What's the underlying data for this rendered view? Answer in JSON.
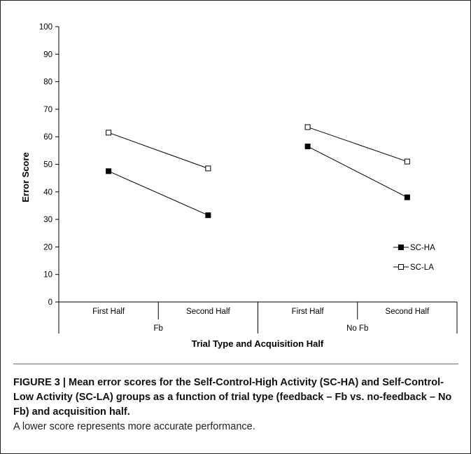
{
  "chart_data": {
    "type": "line",
    "title": "",
    "ylabel": "Error Score",
    "xlabel": "Trial Type and Acquisition Half",
    "ylim": [
      0,
      100
    ],
    "yticks": [
      "0",
      "10",
      "20",
      "30",
      "40",
      "50",
      "60",
      "70",
      "80",
      "90",
      "100"
    ],
    "categories": [
      "First Half",
      "Second Half",
      "First Half",
      "Second Half"
    ],
    "groups": [
      "Fb",
      "No Fb"
    ],
    "grid": false,
    "legend_position": "right",
    "series": [
      {
        "name": "SC-HA",
        "marker": "filled-square",
        "segments": [
          {
            "group": "Fb",
            "values": [
              47.5,
              31.5
            ]
          },
          {
            "group": "No Fb",
            "values": [
              56.5,
              38
            ]
          }
        ]
      },
      {
        "name": "SC-LA",
        "marker": "open-square",
        "segments": [
          {
            "group": "Fb",
            "values": [
              61.5,
              48.5
            ]
          },
          {
            "group": "No Fb",
            "values": [
              63.5,
              51
            ]
          }
        ]
      }
    ]
  },
  "caption": {
    "label": "FIGURE 3 | Mean error scores for the Self-Control-High Activity (SC-HA) and Self-Control-Low Activity (SC-LA) groups as a function of trial type (feedback – Fb vs. no-feedback – No Fb) and acquisition half.",
    "body": "A lower score represents more accurate performance."
  }
}
